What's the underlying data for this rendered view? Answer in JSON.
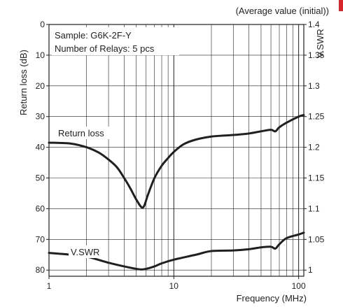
{
  "colors": {
    "accent": "#d9262c",
    "ink": "#231f20"
  },
  "chart_data": {
    "type": "line",
    "caption": "(Average value (initial))",
    "xlabel": "Frequency (MHz)",
    "ylabel": "Return loss (dB)",
    "ylabel_right": "V.SWR",
    "x_scale": "log",
    "xlim": [
      1,
      110
    ],
    "x_ticks": [
      1,
      10,
      100
    ],
    "x_tick_labels": [
      "1",
      "10",
      "100"
    ],
    "ylim": [
      0,
      82
    ],
    "y_inverted": true,
    "y_ticks": [
      0,
      10,
      20,
      30,
      40,
      50,
      60,
      70,
      80
    ],
    "y_tick_labels": [
      "0",
      "10",
      "20",
      "30",
      "40",
      "50",
      "60",
      "70",
      "80"
    ],
    "y2lim": [
      1.0,
      1.4
    ],
    "y2_ticks": [
      1.4,
      1.35,
      1.3,
      1.25,
      1.2,
      1.15,
      1.1,
      1.05,
      1.0
    ],
    "y2_tick_labels": [
      "1.4",
      "1.35",
      "1.3",
      "1.25",
      "1.2",
      "1.15",
      "1.1",
      "1.05",
      "1"
    ],
    "grid": true,
    "legend": "none",
    "annotations": [
      "Sample: G6K-2F-Y",
      "Number of Relays: 5 pcs"
    ],
    "series": [
      {
        "name": "Return loss",
        "axis": "left",
        "x": [
          1,
          1.5,
          2,
          2.5,
          3,
          3.5,
          4,
          4.5,
          5,
          5.5,
          5.8,
          6.2,
          7,
          8,
          9,
          10,
          12,
          15,
          20,
          25,
          30,
          40,
          50,
          60,
          65,
          70,
          80,
          100,
          110
        ],
        "y": [
          38.5,
          38.8,
          40,
          41.7,
          44,
          46.5,
          50,
          53.5,
          57,
          59.5,
          59,
          55.5,
          50,
          46,
          43.5,
          41.5,
          39,
          37.5,
          36.5,
          36.2,
          36,
          35.5,
          34.8,
          34.3,
          34.8,
          33.5,
          32,
          30,
          29.5
        ]
      },
      {
        "name": "V.SWR",
        "axis": "right",
        "x": [
          1,
          1.5,
          2,
          3,
          4,
          5,
          5.5,
          6,
          7,
          8,
          10,
          15,
          20,
          30,
          40,
          50,
          60,
          65,
          70,
          80,
          100,
          110
        ],
        "y": [
          1.028,
          1.025,
          1.022,
          1.012,
          1.006,
          1.002,
          1.001,
          1.002,
          1.006,
          1.011,
          1.017,
          1.025,
          1.031,
          1.032,
          1.034,
          1.037,
          1.038,
          1.035,
          1.042,
          1.052,
          1.058,
          1.061
        ]
      }
    ]
  }
}
